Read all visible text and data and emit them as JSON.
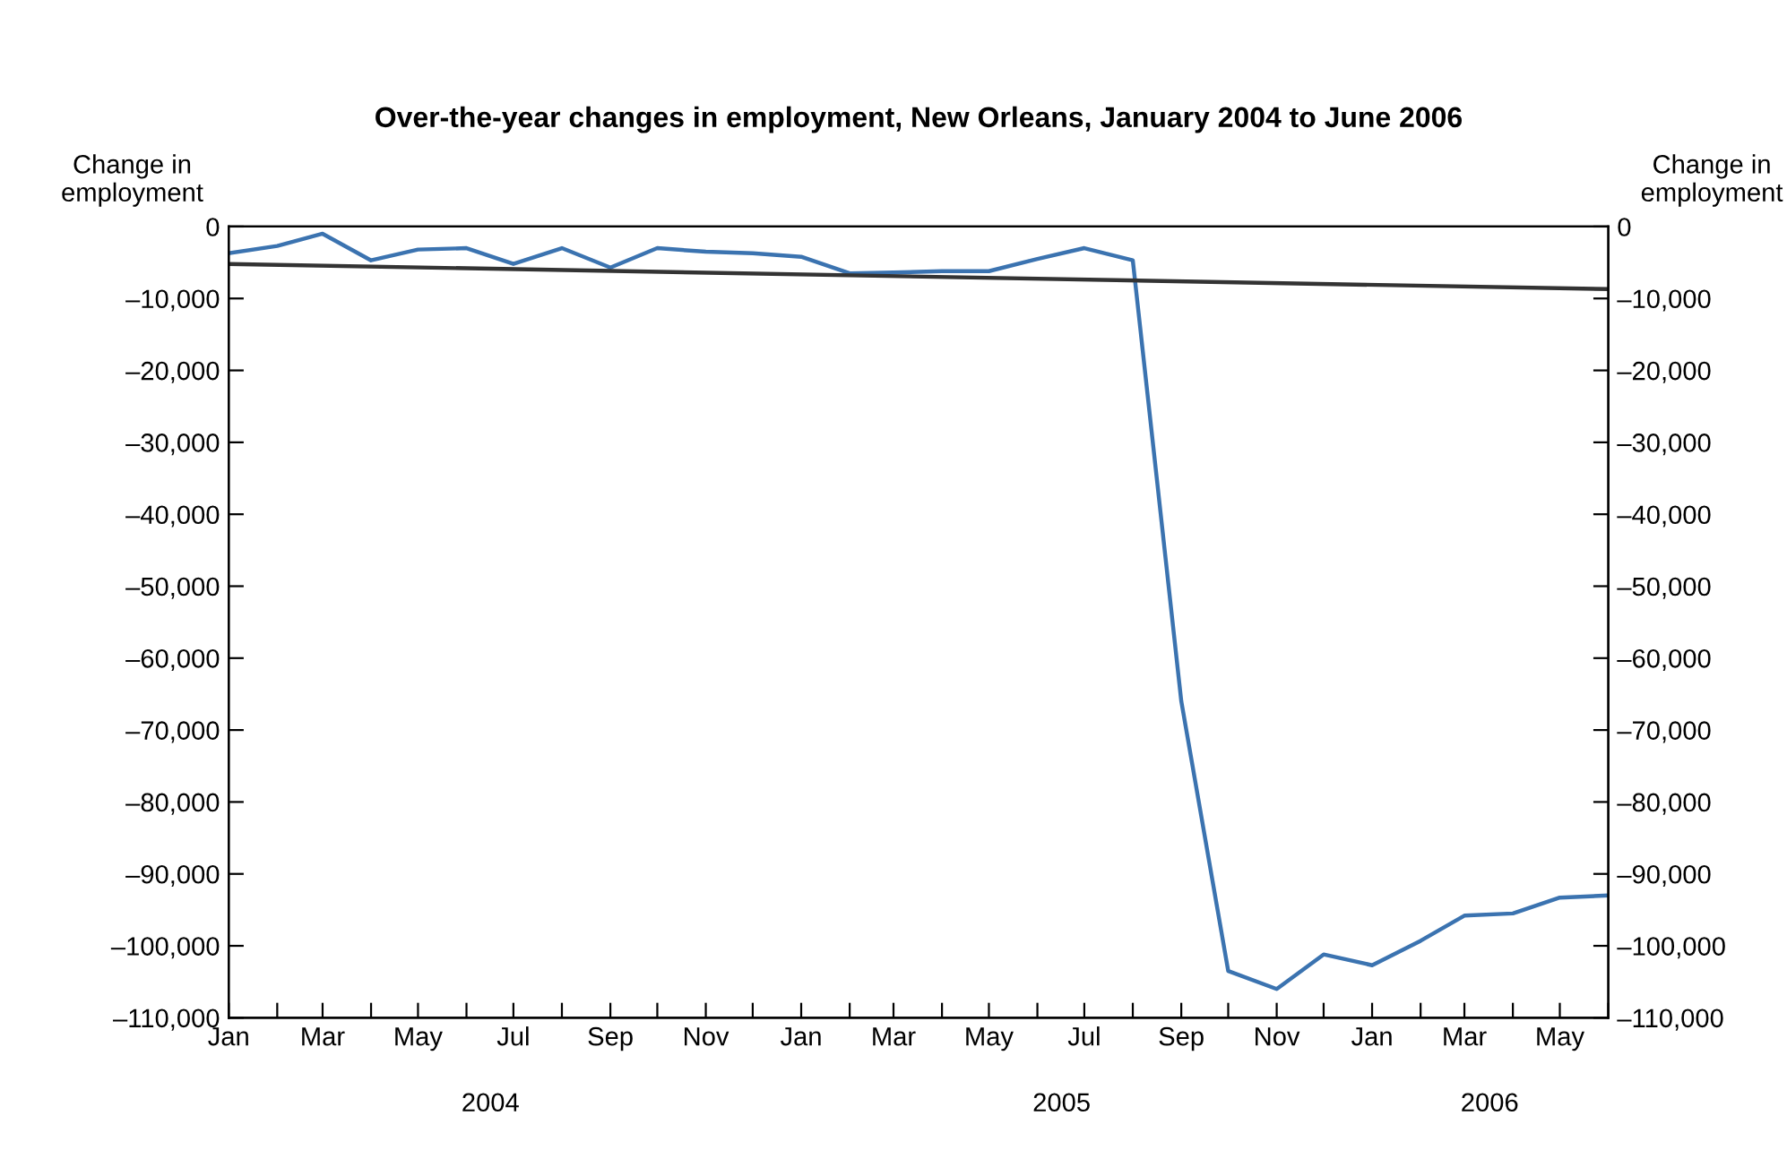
{
  "chart_data": {
    "type": "line",
    "title": "Over-the-year changes in employment, New Orleans, January 2004 to June 2006",
    "ylabel": "Change in\nemployment",
    "y2label": "Change in\nemployment",
    "x": [
      "2004-01",
      "2004-02",
      "2004-03",
      "2004-04",
      "2004-05",
      "2004-06",
      "2004-07",
      "2004-08",
      "2004-09",
      "2004-10",
      "2004-11",
      "2004-12",
      "2005-01",
      "2005-02",
      "2005-03",
      "2005-04",
      "2005-05",
      "2005-06",
      "2005-07",
      "2005-08",
      "2005-09",
      "2005-10",
      "2005-11",
      "2005-12",
      "2006-01",
      "2006-02",
      "2006-03",
      "2006-04",
      "2006-05",
      "2006-06"
    ],
    "series": [
      {
        "color": "#3b73b0",
        "values": [
          -3700,
          -2700,
          -1000,
          -4700,
          -3200,
          -3000,
          -5200,
          -3000,
          -5700,
          -3000,
          -3500,
          -3700,
          -4200,
          -6500,
          -6400,
          -6200,
          -6200,
          -4500,
          -3000,
          -4700,
          -66000,
          -103500,
          -106000,
          -101200,
          -102700,
          -99300,
          -95800,
          -95500,
          -93300,
          -93000
        ]
      },
      {
        "color": "#333333",
        "x": [
          "2004-01",
          "2006-06"
        ],
        "values": [
          -5200,
          -8700
        ]
      }
    ],
    "xlim": [
      "2004-01",
      "2006-06"
    ],
    "xticks": [
      {
        "value": "2004-01",
        "label": "Jan"
      },
      {
        "value": "2004-02",
        "label": null
      },
      {
        "value": "2004-03",
        "label": "Mar"
      },
      {
        "value": "2004-04",
        "label": null
      },
      {
        "value": "2004-05",
        "label": "May"
      },
      {
        "value": "2004-06",
        "label": null
      },
      {
        "value": "2004-07",
        "label": "Jul"
      },
      {
        "value": "2004-08",
        "label": null
      },
      {
        "value": "2004-09",
        "label": "Sep"
      },
      {
        "value": "2004-10",
        "label": null
      },
      {
        "value": "2004-11",
        "label": "Nov"
      },
      {
        "value": "2004-12",
        "label": null
      },
      {
        "value": "2005-01",
        "label": "Jan"
      },
      {
        "value": "2005-02",
        "label": null
      },
      {
        "value": "2005-03",
        "label": "Mar"
      },
      {
        "value": "2005-04",
        "label": null
      },
      {
        "value": "2005-05",
        "label": "May"
      },
      {
        "value": "2005-06",
        "label": null
      },
      {
        "value": "2005-07",
        "label": "Jul"
      },
      {
        "value": "2005-08",
        "label": null
      },
      {
        "value": "2005-09",
        "label": "Sep"
      },
      {
        "value": "2005-10",
        "label": null
      },
      {
        "value": "2005-11",
        "label": "Nov"
      },
      {
        "value": "2005-12",
        "label": null
      },
      {
        "value": "2006-01",
        "label": "Jan"
      },
      {
        "value": "2006-02",
        "label": null
      },
      {
        "value": "2006-03",
        "label": "Mar"
      },
      {
        "value": "2006-04",
        "label": null
      },
      {
        "value": "2006-05",
        "label": "May"
      },
      {
        "value": "2006-06",
        "label": null
      }
    ],
    "ylim": [
      -110000,
      0
    ],
    "yticks": [
      0,
      {
        "value": -10000,
        "label": "–10,000"
      },
      {
        "value": -20000,
        "label": "–20,000"
      },
      {
        "value": -30000,
        "label": "–30,000"
      },
      {
        "value": -40000,
        "label": "–40,000"
      },
      {
        "value": -50000,
        "label": "–50,000"
      },
      {
        "value": -60000,
        "label": "–60,000"
      },
      {
        "value": -70000,
        "label": "–70,000"
      },
      {
        "value": -80000,
        "label": "–80,000"
      },
      {
        "value": -90000,
        "label": "–90,000"
      },
      {
        "value": -100000,
        "label": "–100,000"
      },
      {
        "value": -110000,
        "label": "–110,000"
      }
    ],
    "y2lim": [
      -110000,
      0
    ],
    "y2ticks": [
      0,
      {
        "value": -10000,
        "label": "–10,000"
      },
      {
        "value": -20000,
        "label": "–20,000"
      },
      {
        "value": -30000,
        "label": "–30,000"
      },
      {
        "value": -40000,
        "label": "–40,000"
      },
      {
        "value": -50000,
        "label": "–50,000"
      },
      {
        "value": -60000,
        "label": "–60,000"
      },
      {
        "value": -70000,
        "label": "–70,000"
      },
      {
        "value": -80000,
        "label": "–80,000"
      },
      {
        "value": -90000,
        "label": "–90,000"
      },
      {
        "value": -100000,
        "label": "–100,000"
      },
      {
        "value": -110000,
        "label": "–110,000"
      }
    ],
    "annotations": [
      "2004",
      "2005",
      "2006"
    ],
    "grid": false,
    "legend": false,
    "marker": "none",
    "line_style": "solid"
  }
}
